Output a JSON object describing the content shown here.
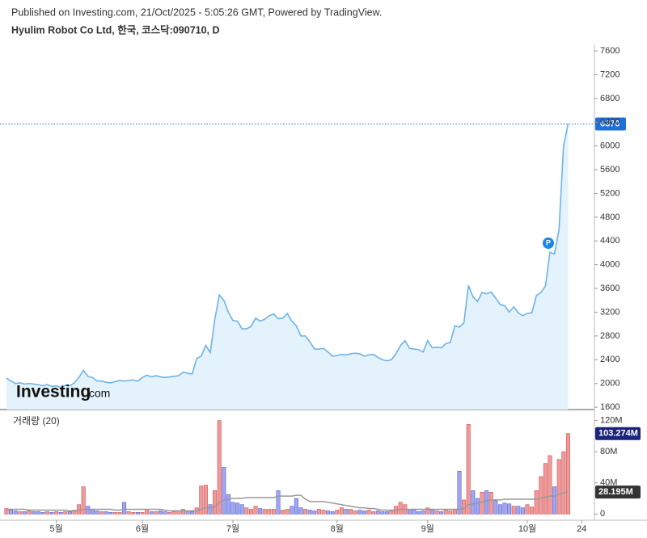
{
  "header": {
    "published": "Published on Investing.com, 21/Oct/2025 - 5:05:26 GMT, Powered by TradingView.",
    "instrument": "Hyulim Robot Co Ltd, 한국, 코스닥:090710, D"
  },
  "logo": {
    "brand": "Investing",
    "suffix": ".com"
  },
  "annotation": "P",
  "chart_data": [
    {
      "type": "area",
      "name": "price",
      "categories": [
        null,
        null,
        null,
        null,
        null,
        null,
        null,
        null,
        null,
        null,
        null,
        "5월",
        null,
        null,
        null,
        null,
        null,
        null,
        null,
        null,
        null,
        null,
        null,
        null,
        null,
        null,
        null,
        null,
        null,
        null,
        "6월",
        null,
        null,
        null,
        null,
        null,
        null,
        null,
        null,
        null,
        null,
        null,
        null,
        null,
        null,
        null,
        null,
        null,
        null,
        null,
        "7월",
        null,
        null,
        null,
        null,
        null,
        null,
        null,
        null,
        null,
        null,
        null,
        null,
        null,
        null,
        null,
        null,
        null,
        null,
        null,
        null,
        null,
        null,
        "8월",
        null,
        null,
        null,
        null,
        null,
        null,
        null,
        null,
        null,
        null,
        null,
        null,
        null,
        null,
        null,
        null,
        null,
        null,
        null,
        "9월",
        null,
        null,
        null,
        null,
        null,
        null,
        null,
        null,
        null,
        null,
        null,
        null,
        null,
        null,
        null,
        null,
        null,
        null,
        null,
        null,
        null,
        "10월",
        null,
        null,
        null,
        null,
        null,
        null,
        null,
        null,
        null,
        null,
        null,
        "24"
      ],
      "values": [
        2090,
        2040,
        2000,
        2010,
        1990,
        2000,
        1990,
        1980,
        1960,
        1980,
        1950,
        1960,
        1930,
        1970,
        1960,
        2010,
        2100,
        2220,
        2120,
        2100,
        2040,
        2040,
        2020,
        2010,
        2030,
        2050,
        2040,
        2050,
        2060,
        2040,
        2100,
        2140,
        2110,
        2130,
        2110,
        2100,
        2110,
        2120,
        2130,
        2190,
        2170,
        2160,
        2420,
        2460,
        2640,
        2520,
        3080,
        3490,
        3400,
        3200,
        3060,
        3050,
        2920,
        2920,
        2960,
        3100,
        3050,
        3080,
        3140,
        3170,
        3090,
        3100,
        3180,
        3050,
        2970,
        2800,
        2800,
        2700,
        2580,
        2580,
        2590,
        2530,
        2460,
        2470,
        2490,
        2480,
        2500,
        2510,
        2500,
        2460,
        2480,
        2490,
        2440,
        2400,
        2380,
        2400,
        2500,
        2640,
        2720,
        2590,
        2580,
        2570,
        2530,
        2720,
        2600,
        2610,
        2600,
        2670,
        2690,
        2970,
        2950,
        3020,
        3650,
        3460,
        3380,
        3530,
        3510,
        3540,
        3440,
        3330,
        3310,
        3200,
        3290,
        3190,
        3140,
        3180,
        3190,
        3480,
        3530,
        3640,
        4210,
        4180,
        4590,
        6000,
        6370,
        null,
        null,
        null
      ],
      "color": "#6fb3e8",
      "fill": "#e3f2fb",
      "ylim": [
        1560,
        7710
      ],
      "yticks": [
        1600,
        2000,
        2400,
        2800,
        3200,
        3600,
        4000,
        4400,
        4800,
        5200,
        5600,
        6000,
        6400,
        6800,
        7200,
        7600
      ],
      "grid": false
    },
    {
      "type": "bar",
      "title": "거래량 (20)",
      "series": [
        {
          "name": "volume",
          "up_color": "#ef9a9a",
          "down_color": "#9fa8ef",
          "values": [
            7,
            5,
            4,
            3,
            3,
            4,
            3,
            3,
            2,
            3,
            2,
            3,
            2,
            3,
            3,
            5,
            12,
            35,
            10,
            6,
            4,
            3,
            3,
            2,
            2,
            2,
            15,
            3,
            2,
            2,
            2,
            6,
            3,
            3,
            4,
            3,
            2,
            3,
            4,
            6,
            4,
            3,
            8,
            36,
            37,
            12,
            30,
            120,
            60,
            25,
            15,
            14,
            12,
            8,
            6,
            10,
            7,
            6,
            6,
            6,
            30,
            5,
            6,
            10,
            20,
            8,
            6,
            5,
            4,
            6,
            5,
            4,
            3,
            5,
            8,
            6,
            6,
            4,
            5,
            4,
            5,
            3,
            4,
            3,
            3,
            4,
            10,
            15,
            12,
            6,
            5,
            3,
            4,
            8,
            5,
            4,
            3,
            5,
            4,
            6,
            55,
            18,
            115,
            30,
            20,
            28,
            30,
            28,
            17,
            12,
            14,
            13,
            10,
            10,
            8,
            12,
            9,
            30,
            48,
            65,
            75,
            35,
            70,
            80,
            103.274,
            null,
            null,
            null
          ],
          "value_labels": [
            null,
            null,
            null,
            null,
            null,
            null,
            null,
            null,
            null,
            null,
            null,
            null,
            null,
            null,
            null,
            null,
            null,
            null,
            null,
            null,
            null,
            null,
            null,
            null,
            null,
            null,
            null,
            null,
            null,
            null,
            null,
            null,
            null,
            null,
            null,
            null,
            null,
            null,
            null,
            null,
            null,
            null,
            null,
            null,
            null,
            null,
            null,
            null,
            null,
            null,
            null,
            null,
            null,
            null,
            null,
            null,
            null,
            null,
            null,
            null,
            null,
            null,
            null,
            null,
            null,
            null,
            null,
            null,
            null,
            null,
            null,
            null,
            null,
            null,
            null,
            null,
            null,
            null,
            null,
            null,
            null,
            null,
            null,
            null,
            null,
            null,
            null,
            null,
            null,
            null,
            null,
            null,
            null,
            null,
            null,
            null,
            null,
            null,
            null,
            null,
            null,
            null,
            null,
            null,
            null,
            null,
            null,
            null,
            null,
            null,
            null,
            null,
            null,
            null,
            null,
            null,
            null,
            null,
            null,
            null,
            null,
            null,
            null,
            null,
            "103.274M",
            null,
            null,
            null
          ]
        },
        {
          "name": "ma",
          "color": "#999999",
          "values": [
            6,
            6,
            6,
            6,
            6,
            5,
            5,
            5,
            5,
            5,
            5,
            5,
            5,
            5,
            4,
            4,
            5,
            6,
            6,
            6,
            6,
            6,
            6,
            6,
            5,
            5,
            6,
            6,
            6,
            6,
            6,
            6,
            6,
            6,
            6,
            5,
            4,
            4,
            4,
            4,
            4,
            4,
            4,
            6,
            8,
            8,
            9,
            15,
            18,
            19,
            20,
            20,
            20,
            21,
            21,
            21,
            21,
            21,
            21,
            21,
            23,
            23,
            23,
            23,
            24,
            24,
            19,
            16,
            16,
            16,
            16,
            15,
            14,
            13,
            12,
            11,
            10,
            9,
            8,
            8,
            7,
            7,
            6,
            5,
            5,
            5,
            5,
            6,
            6,
            6,
            6,
            6,
            6,
            6,
            6,
            6,
            6,
            6,
            6,
            6,
            6,
            7,
            12,
            13,
            14,
            15,
            17,
            18,
            18,
            18,
            19,
            19,
            19,
            19,
            19,
            19,
            19,
            19,
            20,
            22,
            23,
            23,
            25,
            27,
            28.195,
            null,
            null,
            null
          ],
          "value_labels": [
            null,
            null,
            null,
            null,
            null,
            null,
            null,
            null,
            null,
            null,
            null,
            null,
            null,
            null,
            null,
            null,
            null,
            null,
            null,
            null,
            null,
            null,
            null,
            null,
            null,
            null,
            null,
            null,
            null,
            null,
            null,
            null,
            null,
            null,
            null,
            null,
            null,
            null,
            null,
            null,
            null,
            null,
            null,
            null,
            null,
            null,
            null,
            null,
            null,
            null,
            null,
            null,
            null,
            null,
            null,
            null,
            null,
            null,
            null,
            null,
            null,
            null,
            null,
            null,
            null,
            null,
            null,
            null,
            null,
            null,
            null,
            null,
            null,
            null,
            null,
            null,
            null,
            null,
            null,
            null,
            null,
            null,
            null,
            null,
            null,
            null,
            null,
            null,
            null,
            null,
            null,
            null,
            null,
            null,
            null,
            null,
            null,
            null,
            null,
            null,
            null,
            null,
            null,
            null,
            null,
            null,
            null,
            null,
            null,
            null,
            null,
            null,
            null,
            null,
            null,
            null,
            null,
            null,
            null,
            null,
            null,
            null,
            null,
            null,
            "28.195M",
            null,
            null,
            null
          ]
        }
      ],
      "ylim": [
        -8,
        131
      ],
      "yticks": [
        {
          "value": 0,
          "label": "0"
        },
        {
          "value": 40,
          "label": "40M"
        },
        {
          "value": 80,
          "label": "80M"
        },
        {
          "value": 120,
          "label": "120M"
        }
      ]
    }
  ]
}
